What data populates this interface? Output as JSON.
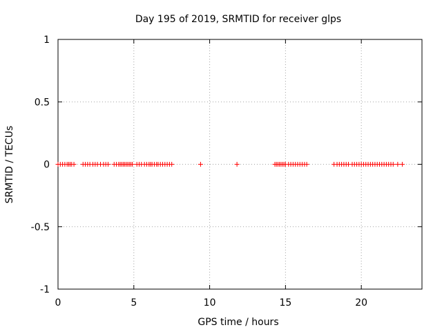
{
  "chart_data": {
    "type": "scatter",
    "title": "Day 195 of 2019, SRMTID for receiver glps",
    "xlabel": "GPS time / hours",
    "ylabel": "SRMTID / TECUs",
    "xlim": [
      0,
      24
    ],
    "ylim": [
      -1,
      1
    ],
    "grid": true,
    "x_ticks": [
      0,
      5,
      10,
      15,
      20
    ],
    "y_ticks": [
      -1,
      -0.5,
      0,
      0.5,
      1
    ],
    "x_tick_labels": [
      "0",
      "5",
      "10",
      "15",
      "20"
    ],
    "y_tick_labels": [
      "-1",
      "-0.5",
      "0",
      "0.5",
      "1"
    ],
    "marker": "+",
    "series": [
      {
        "name": "SRMTID",
        "color": "#ff0000",
        "points": [
          [
            0.0,
            0
          ],
          [
            0.15,
            0
          ],
          [
            0.3,
            0
          ],
          [
            0.45,
            0
          ],
          [
            0.6,
            0
          ],
          [
            0.7,
            0
          ],
          [
            0.8,
            0
          ],
          [
            0.9,
            0
          ],
          [
            1.05,
            0
          ],
          [
            1.65,
            0
          ],
          [
            1.8,
            0
          ],
          [
            1.95,
            0
          ],
          [
            2.1,
            0
          ],
          [
            2.3,
            0
          ],
          [
            2.45,
            0
          ],
          [
            2.6,
            0
          ],
          [
            2.8,
            0
          ],
          [
            3.0,
            0
          ],
          [
            3.15,
            0
          ],
          [
            3.3,
            0
          ],
          [
            3.7,
            0
          ],
          [
            3.85,
            0
          ],
          [
            4.0,
            0
          ],
          [
            4.1,
            0
          ],
          [
            4.2,
            0
          ],
          [
            4.3,
            0
          ],
          [
            4.4,
            0
          ],
          [
            4.5,
            0
          ],
          [
            4.6,
            0
          ],
          [
            4.7,
            0
          ],
          [
            4.8,
            0
          ],
          [
            4.9,
            0
          ],
          [
            5.2,
            0
          ],
          [
            5.35,
            0
          ],
          [
            5.5,
            0
          ],
          [
            5.7,
            0
          ],
          [
            5.85,
            0
          ],
          [
            6.0,
            0
          ],
          [
            6.1,
            0
          ],
          [
            6.2,
            0
          ],
          [
            6.35,
            0
          ],
          [
            6.5,
            0
          ],
          [
            6.6,
            0
          ],
          [
            6.75,
            0
          ],
          [
            6.9,
            0
          ],
          [
            7.05,
            0
          ],
          [
            7.2,
            0
          ],
          [
            7.35,
            0
          ],
          [
            7.5,
            0
          ],
          [
            9.4,
            0
          ],
          [
            11.8,
            0
          ],
          [
            14.3,
            0
          ],
          [
            14.4,
            0
          ],
          [
            14.5,
            0
          ],
          [
            14.6,
            0
          ],
          [
            14.7,
            0
          ],
          [
            14.8,
            0
          ],
          [
            14.9,
            0
          ],
          [
            15.0,
            0
          ],
          [
            15.2,
            0
          ],
          [
            15.35,
            0
          ],
          [
            15.5,
            0
          ],
          [
            15.65,
            0
          ],
          [
            15.8,
            0
          ],
          [
            15.95,
            0
          ],
          [
            16.1,
            0
          ],
          [
            16.25,
            0
          ],
          [
            16.4,
            0
          ],
          [
            18.2,
            0
          ],
          [
            18.4,
            0
          ],
          [
            18.55,
            0
          ],
          [
            18.7,
            0
          ],
          [
            18.85,
            0
          ],
          [
            19.0,
            0
          ],
          [
            19.15,
            0
          ],
          [
            19.4,
            0
          ],
          [
            19.55,
            0
          ],
          [
            19.7,
            0
          ],
          [
            19.85,
            0
          ],
          [
            20.0,
            0
          ],
          [
            20.15,
            0
          ],
          [
            20.3,
            0
          ],
          [
            20.45,
            0
          ],
          [
            20.6,
            0
          ],
          [
            20.75,
            0
          ],
          [
            20.9,
            0
          ],
          [
            21.05,
            0
          ],
          [
            21.2,
            0
          ],
          [
            21.35,
            0
          ],
          [
            21.5,
            0
          ],
          [
            21.65,
            0
          ],
          [
            21.8,
            0
          ],
          [
            21.95,
            0
          ],
          [
            22.1,
            0
          ],
          [
            22.4,
            0
          ],
          [
            22.7,
            0
          ]
        ]
      }
    ]
  }
}
